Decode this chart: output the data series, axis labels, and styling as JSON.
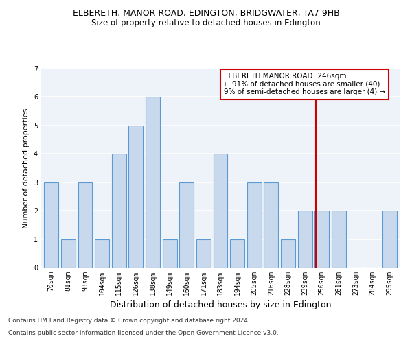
{
  "title": "ELBERETH, MANOR ROAD, EDINGTON, BRIDGWATER, TA7 9HB",
  "subtitle": "Size of property relative to detached houses in Edington",
  "xlabel": "Distribution of detached houses by size in Edington",
  "ylabel": "Number of detached properties",
  "categories": [
    "70sqm",
    "81sqm",
    "93sqm",
    "104sqm",
    "115sqm",
    "126sqm",
    "138sqm",
    "149sqm",
    "160sqm",
    "171sqm",
    "183sqm",
    "194sqm",
    "205sqm",
    "216sqm",
    "228sqm",
    "239sqm",
    "250sqm",
    "261sqm",
    "273sqm",
    "284sqm",
    "295sqm"
  ],
  "values": [
    3,
    1,
    3,
    1,
    4,
    5,
    6,
    1,
    3,
    1,
    4,
    1,
    3,
    3,
    1,
    2,
    2,
    2,
    0,
    0,
    2
  ],
  "bar_color": "#c8d9ed",
  "bar_edgecolor": "#5b9bd5",
  "vline_color": "#cc0000",
  "annotation_text": "ELBERETH MANOR ROAD: 246sqm\n← 91% of detached houses are smaller (40)\n9% of semi-detached houses are larger (4) →",
  "annotation_box_color": "#ffffff",
  "annotation_box_edgecolor": "#cc0000",
  "footer1": "Contains HM Land Registry data © Crown copyright and database right 2024.",
  "footer2": "Contains public sector information licensed under the Open Government Licence v3.0.",
  "ylim": [
    0,
    7
  ],
  "background_color": "#eef2f9",
  "fig_background": "#ffffff",
  "title_fontsize": 9,
  "subtitle_fontsize": 8.5,
  "ylabel_fontsize": 8,
  "xlabel_fontsize": 9,
  "tick_fontsize": 7,
  "footer_fontsize": 6.5,
  "annot_fontsize": 7.5
}
